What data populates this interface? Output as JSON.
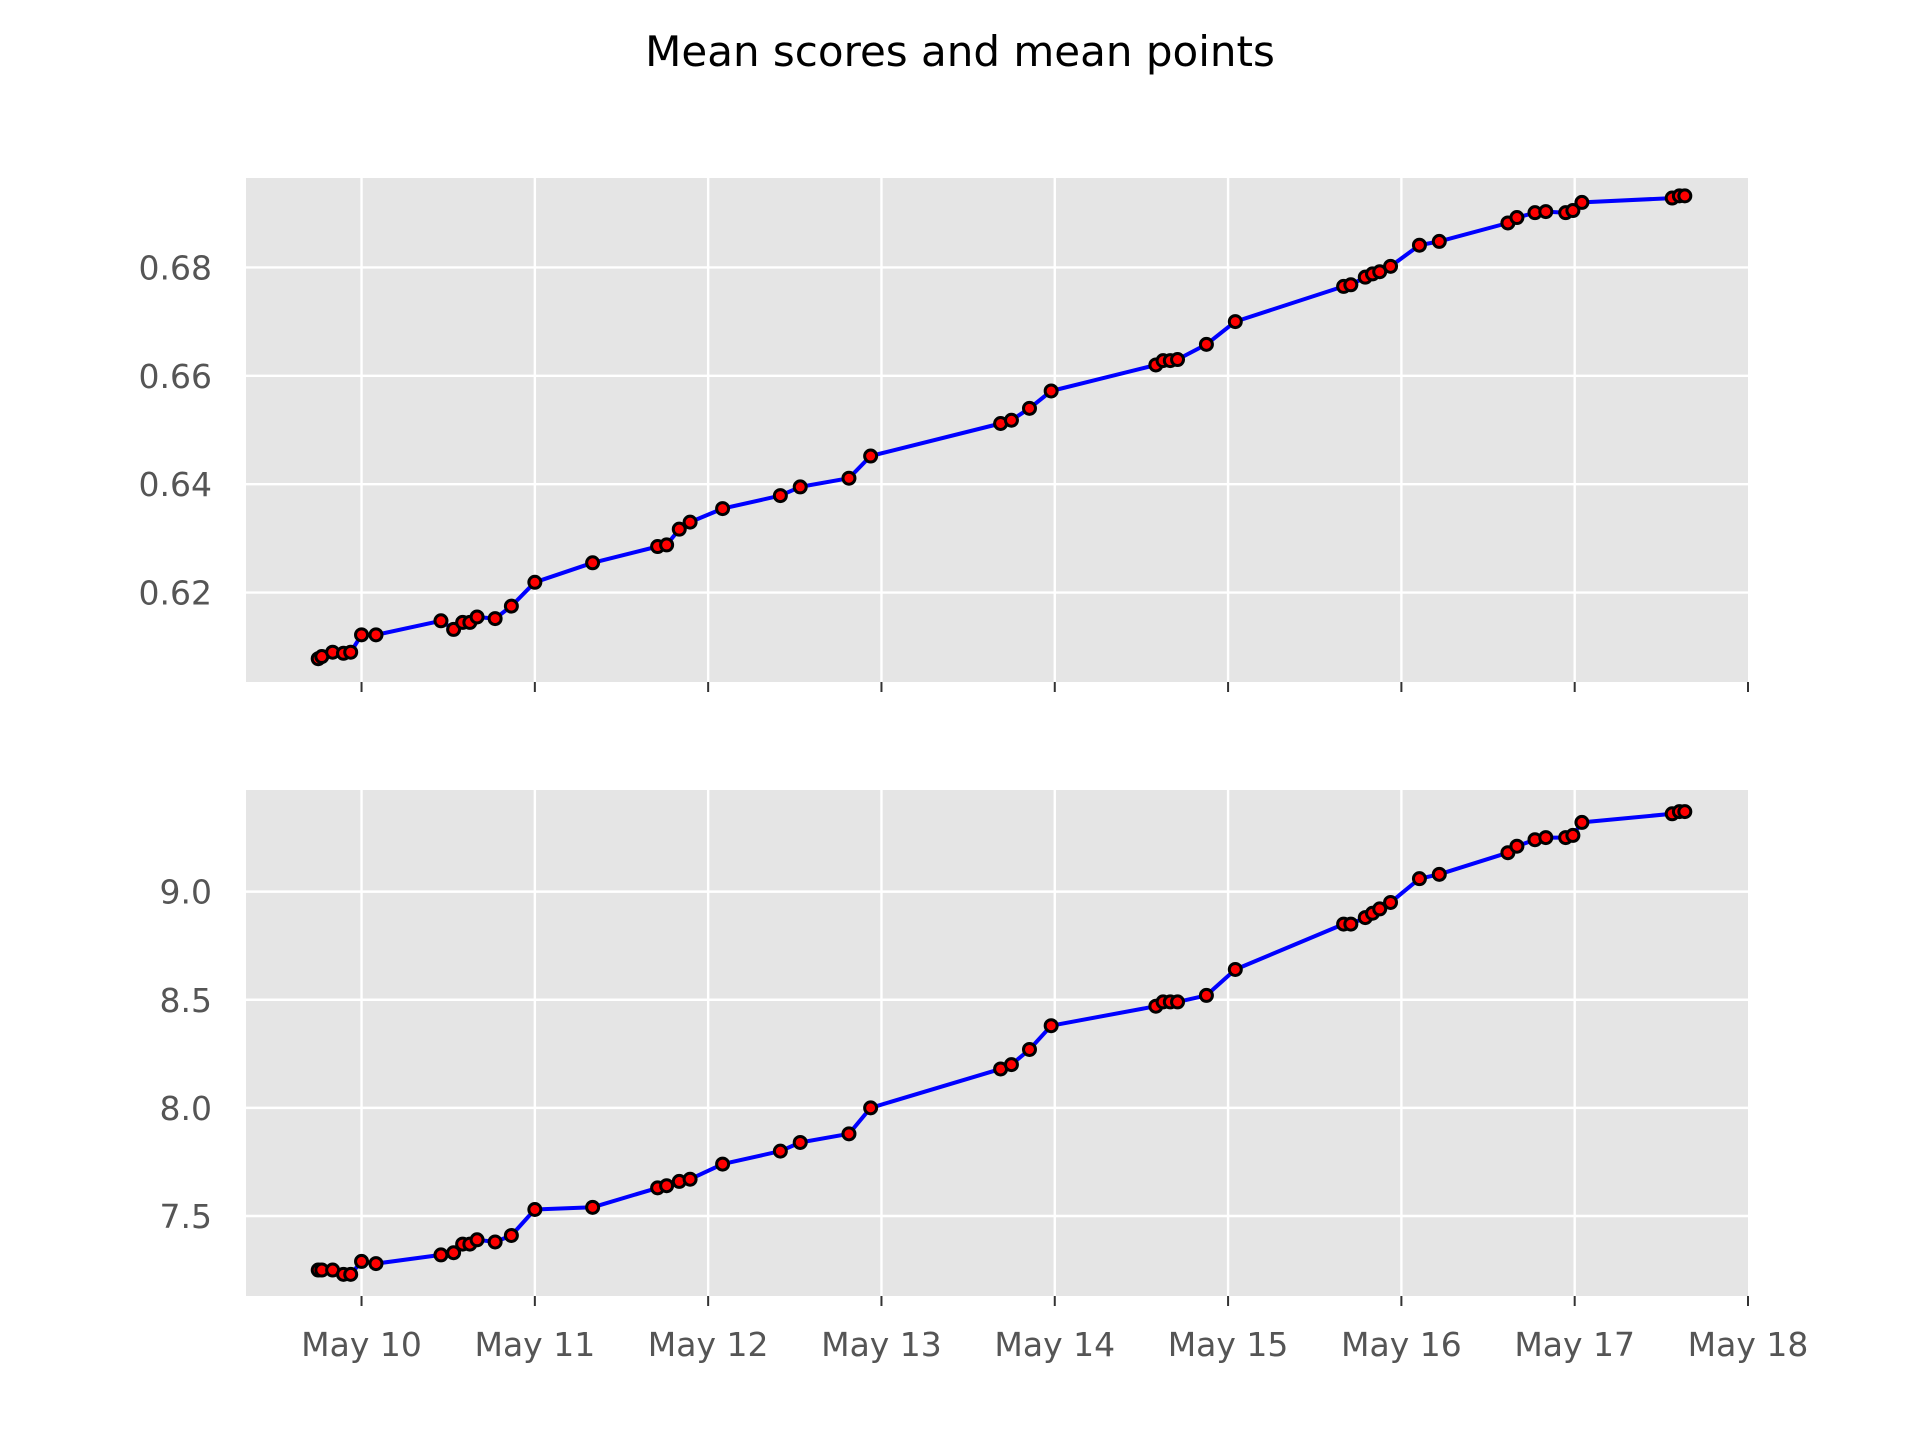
{
  "title": "Mean scores and mean points",
  "colors": {
    "panel_bg": "#e5e5e5",
    "grid": "#ffffff",
    "line": "#0000ff",
    "marker_fill": "#ff0000",
    "marker_edge": "#000000",
    "tick_text": "#555555"
  },
  "x_tick_labels": [
    "May 10",
    "May 11",
    "May 12",
    "May 13",
    "May 14",
    "May 15",
    "May 16",
    "May 17",
    "May 18"
  ],
  "chart_data": [
    {
      "type": "line",
      "title": "Mean scores and mean points",
      "xlabel": "",
      "ylabel": "",
      "x_type": "date",
      "xlim": [
        "2023-05-09T08:00",
        "2023-05-18T00:00"
      ],
      "ylim": [
        0.6035,
        0.6965
      ],
      "yticks": [
        0.62,
        0.64,
        0.66,
        0.68
      ],
      "ytick_labels": [
        "0.62",
        "0.64",
        "0.66",
        "0.68"
      ],
      "grid": true,
      "series": [
        {
          "x": [
            "2023-05-09T18:00",
            "2023-05-09T18:30",
            "2023-05-09T20:00",
            "2023-05-09T21:30",
            "2023-05-09T22:30",
            "2023-05-10T00:00",
            "2023-05-10T02:00",
            "2023-05-10T11:00",
            "2023-05-10T12:45",
            "2023-05-10T14:00",
            "2023-05-10T15:00",
            "2023-05-10T16:00",
            "2023-05-10T18:30",
            "2023-05-10T20:45",
            "2023-05-11T00:00",
            "2023-05-11T08:00",
            "2023-05-11T17:00",
            "2023-05-11T18:15",
            "2023-05-11T20:00",
            "2023-05-11T21:30",
            "2023-05-12T02:00",
            "2023-05-12T10:00",
            "2023-05-12T12:45",
            "2023-05-12T19:30",
            "2023-05-12T22:30",
            "2023-05-13T16:30",
            "2023-05-13T18:00",
            "2023-05-13T20:30",
            "2023-05-13T23:30",
            "2023-05-14T14:00",
            "2023-05-14T15:00",
            "2023-05-14T16:00",
            "2023-05-14T17:00",
            "2023-05-14T21:00",
            "2023-05-15T01:00",
            "2023-05-15T16:00",
            "2023-05-15T17:00",
            "2023-05-15T19:00",
            "2023-05-15T20:00",
            "2023-05-15T21:00",
            "2023-05-15T22:30",
            "2023-05-16T02:30",
            "2023-05-16T05:15",
            "2023-05-16T14:45",
            "2023-05-16T16:00",
            "2023-05-16T18:30",
            "2023-05-16T20:00",
            "2023-05-16T22:45",
            "2023-05-16T23:45",
            "2023-05-17T01:00",
            "2023-05-17T13:30",
            "2023-05-17T14:30",
            "2023-05-17T15:15"
          ],
          "y": [
            0.6078,
            0.6082,
            0.609,
            0.6088,
            0.609,
            0.6122,
            0.6122,
            0.6148,
            0.6132,
            0.6145,
            0.6145,
            0.6155,
            0.6152,
            0.6175,
            0.6219,
            0.6255,
            0.6285,
            0.6288,
            0.6317,
            0.633,
            0.6355,
            0.6379,
            0.6395,
            0.6411,
            0.6452,
            0.6512,
            0.6518,
            0.654,
            0.6572,
            0.662,
            0.6628,
            0.6628,
            0.663,
            0.6658,
            0.67,
            0.6765,
            0.6768,
            0.6782,
            0.6788,
            0.6792,
            0.6802,
            0.6841,
            0.6848,
            0.6882,
            0.6892,
            0.6901,
            0.6903,
            0.6901,
            0.6905,
            0.692,
            0.6928,
            0.6932,
            0.6932
          ]
        }
      ]
    },
    {
      "type": "line",
      "xlabel": "",
      "ylabel": "",
      "x_type": "date",
      "xlim": [
        "2023-05-09T08:00",
        "2023-05-18T00:00"
      ],
      "ylim": [
        7.13,
        9.47
      ],
      "yticks": [
        7.5,
        8.0,
        8.5,
        9.0
      ],
      "ytick_labels": [
        "7.5",
        "8.0",
        "8.5",
        "9.0"
      ],
      "xtick_labels": [
        "May 10",
        "May 11",
        "May 12",
        "May 13",
        "May 14",
        "May 15",
        "May 16",
        "May 17",
        "May 18"
      ],
      "grid": true,
      "series": [
        {
          "x": [
            "2023-05-09T18:00",
            "2023-05-09T18:30",
            "2023-05-09T20:00",
            "2023-05-09T21:30",
            "2023-05-09T22:30",
            "2023-05-10T00:00",
            "2023-05-10T02:00",
            "2023-05-10T11:00",
            "2023-05-10T12:45",
            "2023-05-10T14:00",
            "2023-05-10T15:00",
            "2023-05-10T16:00",
            "2023-05-10T18:30",
            "2023-05-10T20:45",
            "2023-05-11T00:00",
            "2023-05-11T08:00",
            "2023-05-11T17:00",
            "2023-05-11T18:15",
            "2023-05-11T20:00",
            "2023-05-11T21:30",
            "2023-05-12T02:00",
            "2023-05-12T10:00",
            "2023-05-12T12:45",
            "2023-05-12T19:30",
            "2023-05-12T22:30",
            "2023-05-13T16:30",
            "2023-05-13T18:00",
            "2023-05-13T20:30",
            "2023-05-13T23:30",
            "2023-05-14T14:00",
            "2023-05-14T15:00",
            "2023-05-14T16:00",
            "2023-05-14T17:00",
            "2023-05-14T21:00",
            "2023-05-15T01:00",
            "2023-05-15T16:00",
            "2023-05-15T17:00",
            "2023-05-15T19:00",
            "2023-05-15T20:00",
            "2023-05-15T21:00",
            "2023-05-15T22:30",
            "2023-05-16T02:30",
            "2023-05-16T05:15",
            "2023-05-16T14:45",
            "2023-05-16T16:00",
            "2023-05-16T18:30",
            "2023-05-16T20:00",
            "2023-05-16T22:45",
            "2023-05-16T23:45",
            "2023-05-17T01:00",
            "2023-05-17T13:30",
            "2023-05-17T14:30",
            "2023-05-17T15:15"
          ],
          "y": [
            7.25,
            7.25,
            7.25,
            7.23,
            7.23,
            7.29,
            7.28,
            7.32,
            7.33,
            7.37,
            7.37,
            7.39,
            7.38,
            7.41,
            7.53,
            7.54,
            7.63,
            7.64,
            7.66,
            7.67,
            7.74,
            7.8,
            7.84,
            7.88,
            8.0,
            8.18,
            8.2,
            8.27,
            8.38,
            8.47,
            8.49,
            8.49,
            8.49,
            8.52,
            8.64,
            8.85,
            8.85,
            8.88,
            8.9,
            8.92,
            8.95,
            9.06,
            9.08,
            9.18,
            9.21,
            9.24,
            9.25,
            9.25,
            9.26,
            9.32,
            9.36,
            9.37,
            9.37
          ]
        }
      ]
    }
  ]
}
